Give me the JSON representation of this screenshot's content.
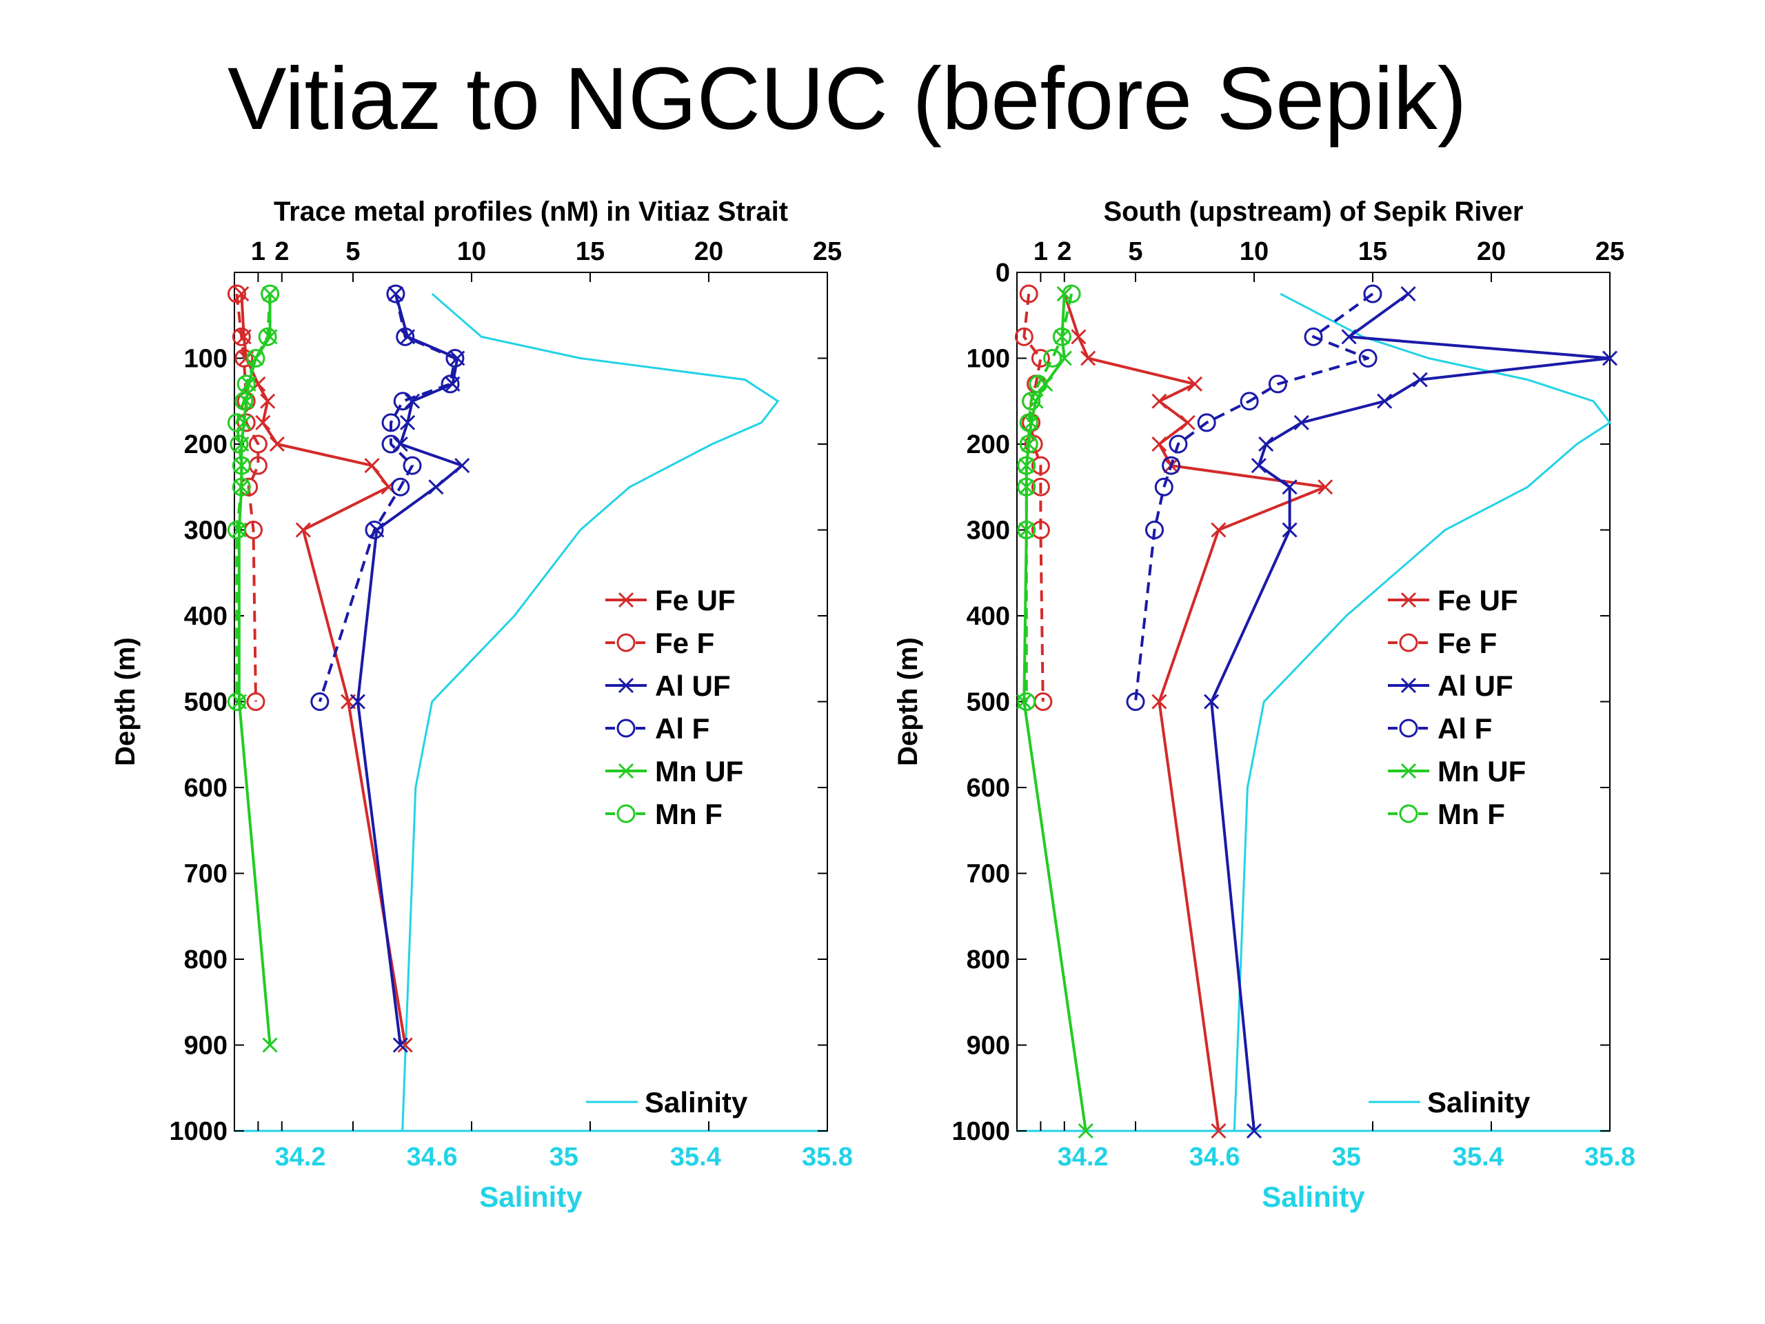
{
  "slide": {
    "title": "Vitiaz to NGCUC (before Sepik)"
  },
  "colors": {
    "fe": "#d42a2a",
    "al": "#1a1aa8",
    "mn": "#22cc22",
    "salinity": "#22d3e6"
  },
  "chart_data": [
    {
      "type": "line",
      "title": "Trace metal profiles (nM) in Vitiaz Strait",
      "xlabel_top": "",
      "xlabel_bottom": "Salinity",
      "ylabel": "Depth (m)",
      "x_top_ticks": [
        "1",
        "2",
        "5",
        "10",
        "15",
        "20",
        "25"
      ],
      "x_top_tick_values": [
        1,
        2,
        5,
        10,
        15,
        20,
        25
      ],
      "x_top_lim": [
        0,
        25
      ],
      "x_bottom_ticks": [
        "34.2",
        "34.6",
        "35",
        "35.4",
        "35.8"
      ],
      "x_bottom_tick_values": [
        34.2,
        34.6,
        35,
        35.4,
        35.8
      ],
      "x_bottom_lim": [
        34.0,
        35.8
      ],
      "y_ticks": [
        "100",
        "200",
        "300",
        "400",
        "500",
        "600",
        "700",
        "800",
        "900",
        "1000"
      ],
      "y_tick_values": [
        100,
        200,
        300,
        400,
        500,
        600,
        700,
        800,
        900,
        1000
      ],
      "ylim": [
        0,
        1000
      ],
      "y_reversed": true,
      "legend": [
        "Fe UF",
        "Fe F",
        "Al UF",
        "Al F",
        "Mn UF",
        "Mn F"
      ],
      "salinity_legend": "Salinity",
      "series": [
        {
          "name": "Fe UF",
          "color_key": "fe",
          "marker": "x",
          "dash": false,
          "depth": [
            25,
            75,
            100,
            130,
            150,
            175,
            200,
            225,
            250,
            300,
            500,
            900
          ],
          "values": [
            0.3,
            0.4,
            0.5,
            1.0,
            1.4,
            1.2,
            1.8,
            5.8,
            6.5,
            2.9,
            4.8,
            7.2
          ]
        },
        {
          "name": "Fe F",
          "color_key": "fe",
          "marker": "o",
          "dash": true,
          "depth": [
            25,
            75,
            100,
            150,
            175,
            200,
            225,
            250,
            300,
            500
          ],
          "values": [
            0.1,
            0.3,
            0.4,
            0.5,
            0.5,
            1.0,
            1.0,
            0.6,
            0.8,
            0.9
          ]
        },
        {
          "name": "Al UF",
          "color_key": "al",
          "marker": "x",
          "dash": false,
          "depth": [
            25,
            75,
            100,
            130,
            150,
            175,
            200,
            225,
            250,
            300,
            500,
            900
          ],
          "values": [
            6.8,
            7.3,
            9.4,
            9.2,
            7.5,
            7.3,
            7.0,
            9.6,
            8.5,
            6.0,
            5.2,
            7.0
          ]
        },
        {
          "name": "Al F",
          "color_key": "al",
          "marker": "o",
          "dash": true,
          "depth": [
            25,
            75,
            100,
            130,
            150,
            175,
            200,
            225,
            250,
            300,
            500
          ],
          "values": [
            6.8,
            7.2,
            9.3,
            9.1,
            7.1,
            6.6,
            6.6,
            7.5,
            7.0,
            5.9,
            3.6
          ]
        },
        {
          "name": "Mn UF",
          "color_key": "mn",
          "marker": "x",
          "dash": false,
          "depth": [
            25,
            75,
            100,
            130,
            150,
            175,
            200,
            225,
            250,
            300,
            500,
            900
          ],
          "values": [
            1.5,
            1.5,
            0.9,
            0.6,
            0.5,
            0.4,
            0.3,
            0.3,
            0.3,
            0.2,
            0.2,
            1.5
          ]
        },
        {
          "name": "Mn F",
          "color_key": "mn",
          "marker": "o",
          "dash": true,
          "depth": [
            25,
            75,
            100,
            130,
            150,
            175,
            200,
            225,
            250,
            300,
            500
          ],
          "values": [
            1.5,
            1.4,
            0.9,
            0.5,
            0.4,
            0.1,
            0.2,
            0.3,
            0.3,
            0.1,
            0.1
          ]
        }
      ],
      "salinity": {
        "name": "Salinity",
        "depth": [
          25,
          75,
          100,
          125,
          150,
          175,
          200,
          250,
          300,
          400,
          500,
          600,
          700,
          800,
          900,
          1000
        ],
        "values": [
          34.6,
          34.75,
          35.05,
          35.55,
          35.65,
          35.6,
          35.45,
          35.2,
          35.05,
          34.85,
          34.6,
          34.55,
          34.54,
          34.53,
          34.52,
          34.51
        ]
      }
    },
    {
      "type": "line",
      "title": "South (upstream) of Sepik River",
      "xlabel_top": "",
      "xlabel_bottom": "Salinity",
      "ylabel": "Depth (m)",
      "x_top_ticks": [
        "1",
        "2",
        "5",
        "10",
        "15",
        "20",
        "25"
      ],
      "x_top_tick_values": [
        1,
        2,
        5,
        10,
        15,
        20,
        25
      ],
      "x_top_lim": [
        0,
        25
      ],
      "x_bottom_ticks": [
        "34.2",
        "34.6",
        "35",
        "35.4",
        "35.8"
      ],
      "x_bottom_tick_values": [
        34.2,
        34.6,
        35,
        35.4,
        35.8
      ],
      "x_bottom_lim": [
        34.0,
        35.8
      ],
      "y_ticks": [
        "0",
        "100",
        "200",
        "300",
        "400",
        "500",
        "600",
        "700",
        "800",
        "900",
        "1000"
      ],
      "y_tick_values": [
        0,
        100,
        200,
        300,
        400,
        500,
        600,
        700,
        800,
        900,
        1000
      ],
      "ylim": [
        0,
        1000
      ],
      "y_reversed": true,
      "legend": [
        "Fe UF",
        "Fe F",
        "Al UF",
        "Al F",
        "Mn UF",
        "Mn F"
      ],
      "salinity_legend": "Salinity",
      "series": [
        {
          "name": "Fe UF",
          "color_key": "fe",
          "marker": "x",
          "dash": false,
          "depth": [
            25,
            75,
            100,
            130,
            150,
            175,
            200,
            225,
            250,
            300,
            500,
            1000
          ],
          "values": [
            2.0,
            2.6,
            3.0,
            7.5,
            6.0,
            7.2,
            6.0,
            6.5,
            13.0,
            8.5,
            6.0,
            8.5
          ]
        },
        {
          "name": "Fe F",
          "color_key": "fe",
          "marker": "o",
          "dash": true,
          "depth": [
            25,
            75,
            100,
            130,
            150,
            175,
            200,
            225,
            250,
            300,
            500
          ],
          "values": [
            0.5,
            0.3,
            1.0,
            0.8,
            0.6,
            0.6,
            0.7,
            1.0,
            1.0,
            1.0,
            1.1
          ]
        },
        {
          "name": "Al UF",
          "color_key": "al",
          "marker": "x",
          "dash": false,
          "depth": [
            25,
            75,
            100,
            125,
            150,
            175,
            200,
            225,
            250,
            300,
            500,
            1000
          ],
          "values": [
            16.5,
            14.0,
            25.0,
            17.0,
            15.5,
            12.0,
            10.5,
            10.2,
            11.5,
            11.5,
            8.2,
            10.0
          ]
        },
        {
          "name": "Al F",
          "color_key": "al",
          "marker": "o",
          "dash": true,
          "depth": [
            25,
            75,
            100,
            130,
            150,
            175,
            200,
            225,
            250,
            300,
            500
          ],
          "values": [
            15.0,
            12.5,
            14.8,
            11.0,
            9.8,
            8.0,
            6.8,
            6.5,
            6.2,
            5.8,
            5.0
          ]
        },
        {
          "name": "Mn UF",
          "color_key": "mn",
          "marker": "x",
          "dash": false,
          "depth": [
            25,
            75,
            100,
            130,
            150,
            175,
            200,
            225,
            250,
            300,
            500,
            1000
          ],
          "values": [
            2.0,
            1.9,
            2.0,
            1.2,
            0.8,
            0.6,
            0.5,
            0.4,
            0.4,
            0.4,
            0.3,
            2.9
          ]
        },
        {
          "name": "Mn F",
          "color_key": "mn",
          "marker": "o",
          "dash": true,
          "depth": [
            25,
            75,
            100,
            130,
            150,
            175,
            200,
            225,
            250,
            300,
            500
          ],
          "values": [
            2.3,
            1.9,
            1.5,
            0.9,
            0.6,
            0.5,
            0.5,
            0.4,
            0.4,
            0.4,
            0.4
          ]
        }
      ],
      "salinity": {
        "name": "Salinity",
        "depth": [
          25,
          75,
          100,
          125,
          150,
          175,
          200,
          250,
          300,
          400,
          500,
          600,
          700,
          800,
          900,
          1000
        ],
        "values": [
          34.8,
          35.05,
          35.25,
          35.55,
          35.75,
          35.8,
          35.7,
          35.55,
          35.3,
          35.0,
          34.75,
          34.7,
          34.69,
          34.68,
          34.67,
          34.66
        ]
      }
    }
  ]
}
